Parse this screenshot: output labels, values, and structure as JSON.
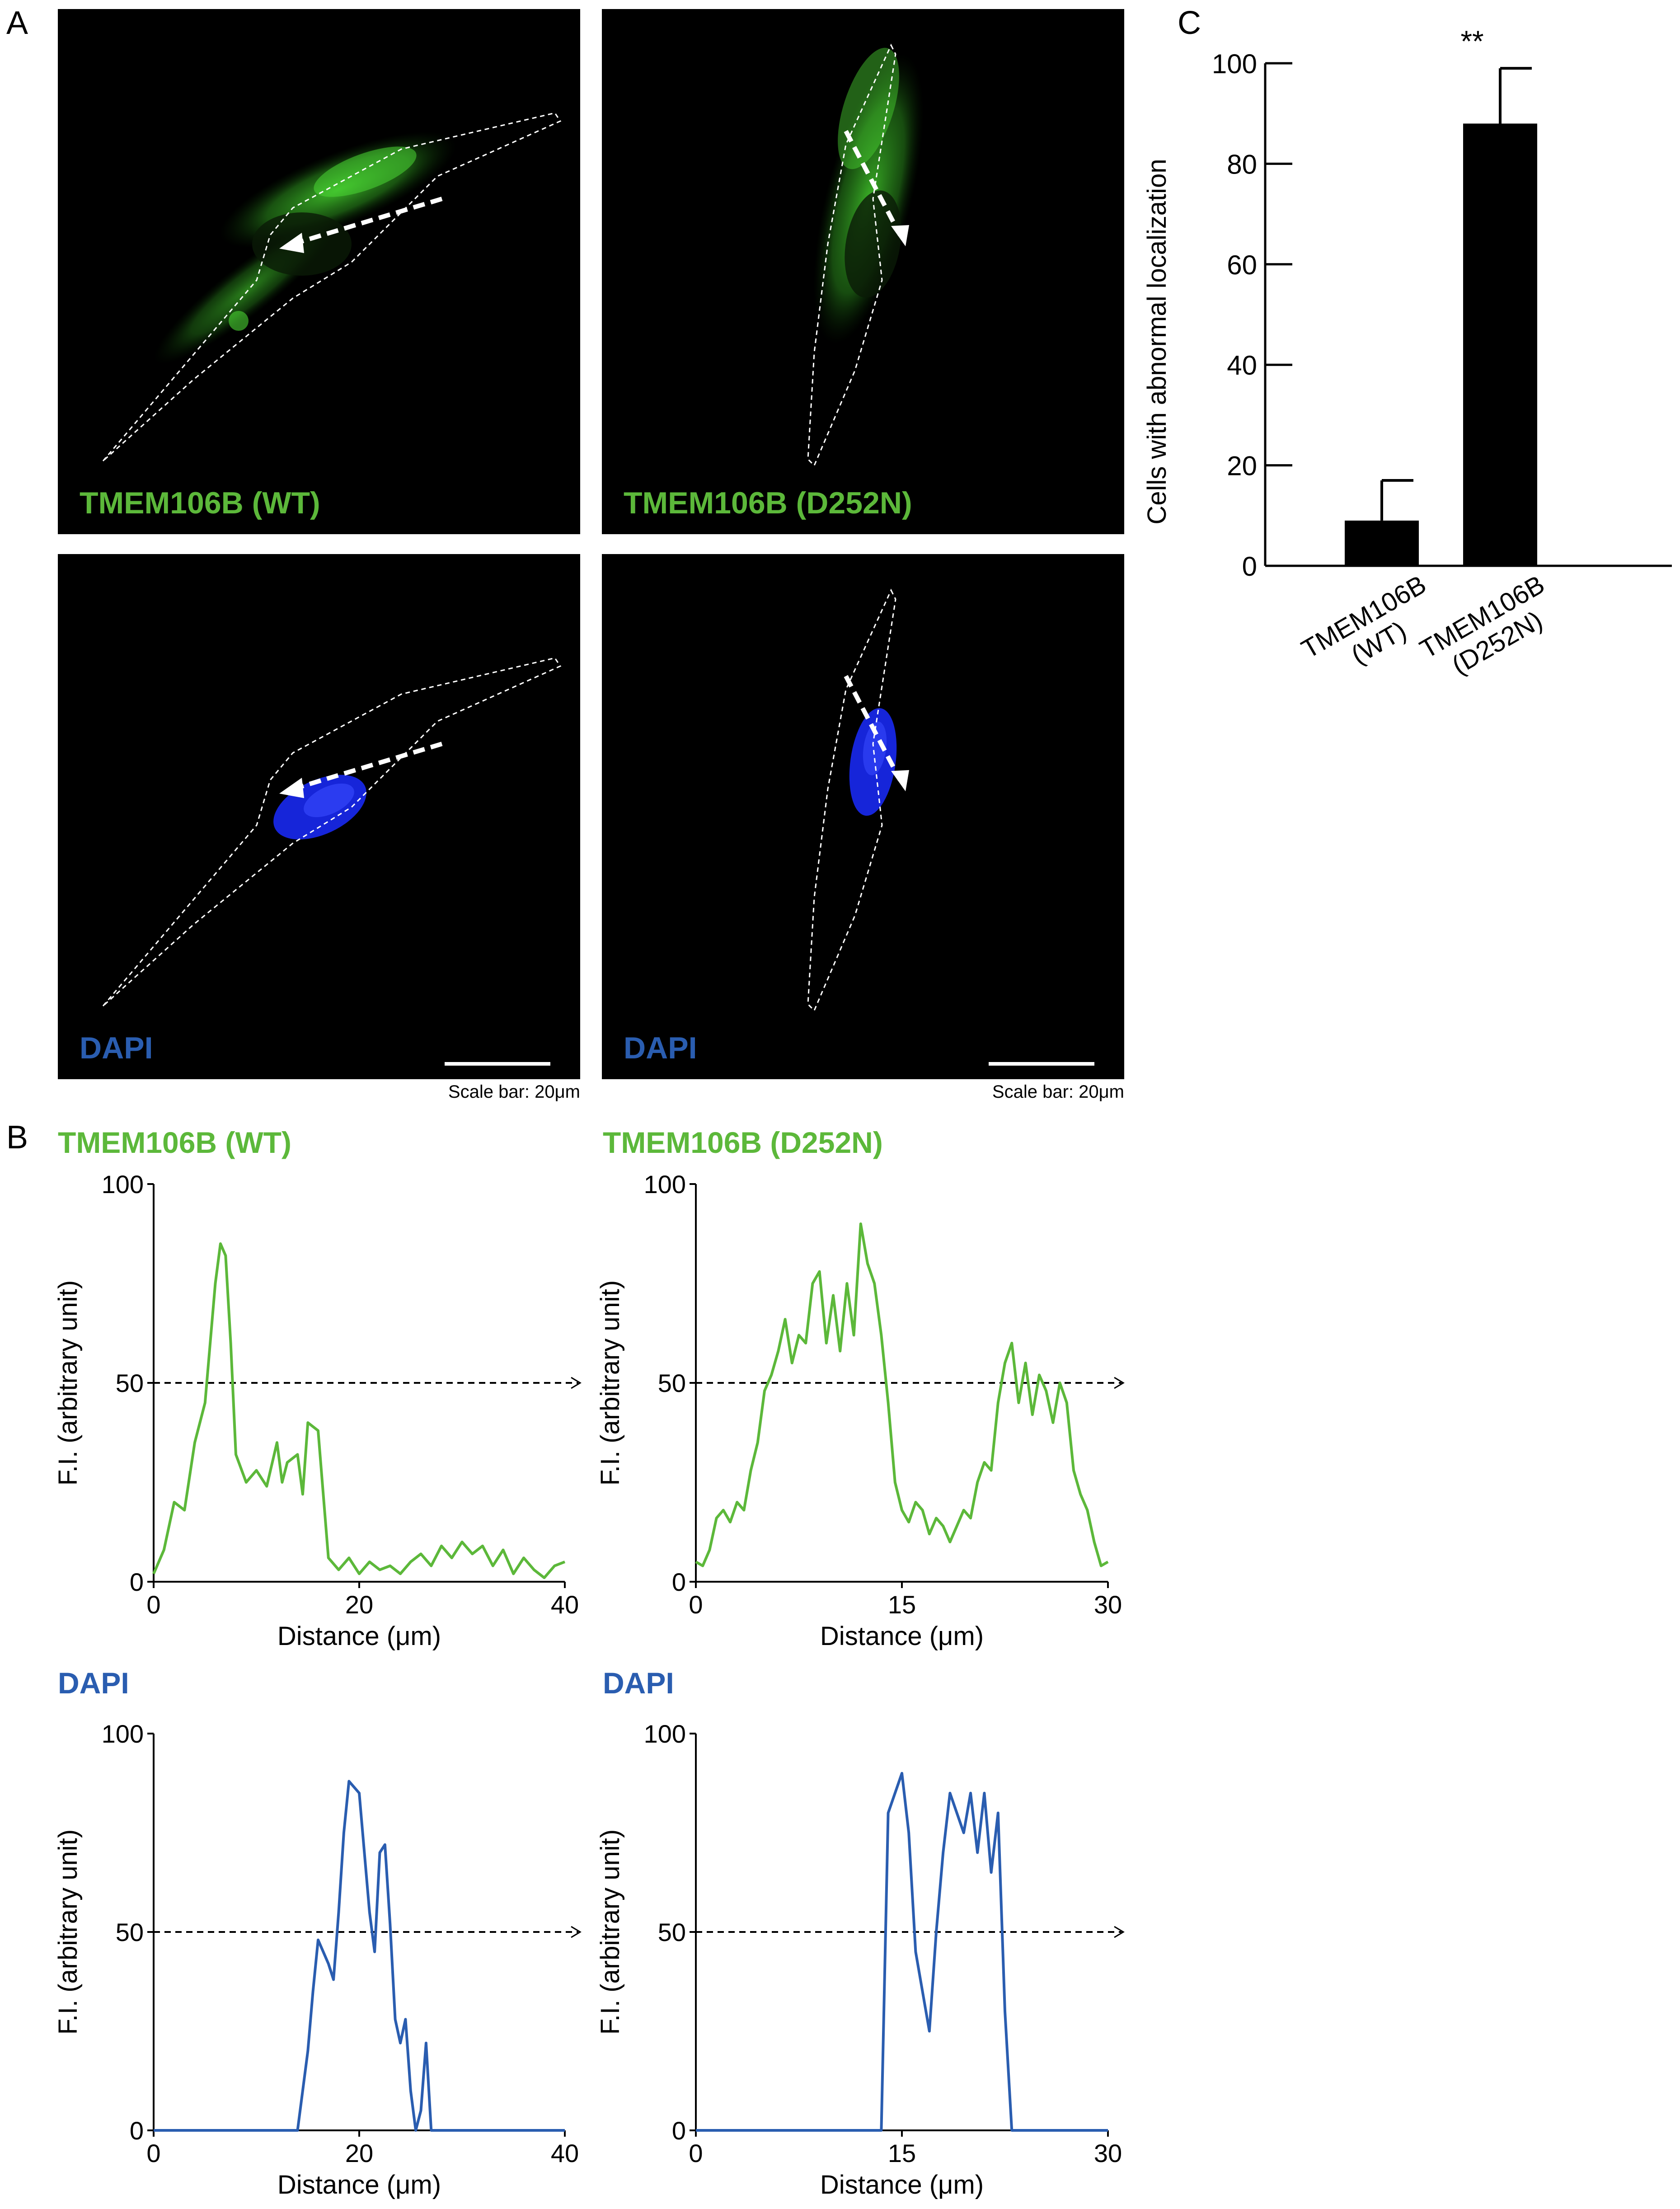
{
  "panel_labels": {
    "a": "A",
    "b": "B",
    "c": "C"
  },
  "colors": {
    "green": "#5cb83a",
    "blue": "#2a5db0",
    "gfp": "#3fbf2a",
    "dapi_signal": "#1a2cff"
  },
  "panel_a": {
    "images": [
      {
        "label": "TMEM106B (WT)",
        "channel": "green"
      },
      {
        "label": "TMEM106B (D252N)",
        "channel": "green"
      },
      {
        "label": "DAPI",
        "channel": "blue",
        "scale_bar": true
      },
      {
        "label": "DAPI",
        "channel": "blue",
        "scale_bar": true
      }
    ],
    "scale_caption": "Scale bar: 20μm"
  },
  "panel_b": {
    "titles": [
      "TMEM106B (WT)",
      "TMEM106B (D252N)",
      "DAPI",
      "DAPI"
    ],
    "xlabel": "Distance (μm)",
    "ylabel": "F.I. (arbitrary unit)"
  },
  "chart_data": [
    {
      "type": "line",
      "title": "TMEM106B (WT)",
      "xlabel": "Distance (μm)",
      "ylabel": "F.I. (arbitrary unit)",
      "xlim": [
        0,
        40
      ],
      "ylim": [
        0,
        100
      ],
      "xticks": [
        0,
        20,
        40
      ],
      "yticks": [
        0,
        50,
        100
      ],
      "reference_line": 50,
      "series": [
        {
          "color": "#5cb83a",
          "x": [
            0,
            1,
            2,
            3,
            4,
            5,
            6,
            6.5,
            7,
            7.5,
            8,
            9,
            10,
            11,
            12,
            12.5,
            13,
            14,
            14.5,
            15,
            16,
            17,
            18,
            19,
            20,
            21,
            22,
            23,
            24,
            25,
            26,
            27,
            28,
            29,
            30,
            31,
            32,
            33,
            34,
            35,
            36,
            37,
            38,
            39,
            40
          ],
          "y": [
            2,
            8,
            20,
            18,
            35,
            45,
            75,
            85,
            82,
            60,
            32,
            25,
            28,
            24,
            35,
            25,
            30,
            32,
            22,
            40,
            38,
            6,
            3,
            6,
            2,
            5,
            3,
            4,
            2,
            5,
            7,
            4,
            9,
            6,
            10,
            7,
            9,
            4,
            8,
            2,
            6,
            3,
            1,
            4,
            5
          ]
        }
      ]
    },
    {
      "type": "line",
      "title": "TMEM106B (D252N)",
      "xlabel": "Distance (μm)",
      "ylabel": "F.I. (arbitrary unit)",
      "xlim": [
        0,
        30
      ],
      "ylim": [
        0,
        100
      ],
      "xticks": [
        0,
        15,
        30
      ],
      "yticks": [
        0,
        50,
        100
      ],
      "reference_line": 50,
      "series": [
        {
          "color": "#5cb83a",
          "x": [
            0,
            0.5,
            1,
            1.5,
            2,
            2.5,
            3,
            3.5,
            4,
            4.5,
            5,
            5.5,
            6,
            6.5,
            7,
            7.5,
            8,
            8.5,
            9,
            9.5,
            10,
            10.5,
            11,
            11.5,
            12,
            12.5,
            13,
            13.5,
            14,
            14.5,
            15,
            15.5,
            16,
            16.5,
            17,
            17.5,
            18,
            18.5,
            19,
            19.5,
            20,
            20.5,
            21,
            21.5,
            22,
            22.5,
            23,
            23.5,
            24,
            24.5,
            25,
            25.5,
            26,
            26.5,
            27,
            27.5,
            28,
            28.5,
            29,
            29.5,
            30
          ],
          "y": [
            5,
            4,
            8,
            16,
            18,
            15,
            20,
            18,
            28,
            35,
            48,
            52,
            58,
            66,
            55,
            62,
            60,
            75,
            78,
            60,
            72,
            58,
            75,
            62,
            90,
            80,
            75,
            62,
            45,
            25,
            18,
            15,
            20,
            18,
            12,
            16,
            14,
            10,
            14,
            18,
            16,
            25,
            30,
            28,
            45,
            55,
            60,
            45,
            55,
            42,
            52,
            48,
            40,
            50,
            45,
            28,
            22,
            18,
            10,
            4,
            5
          ]
        }
      ]
    },
    {
      "type": "line",
      "title": "DAPI",
      "xlabel": "Distance (μm)",
      "ylabel": "F.I. (arbitrary unit)",
      "xlim": [
        0,
        40
      ],
      "ylim": [
        0,
        100
      ],
      "xticks": [
        0,
        20,
        40
      ],
      "yticks": [
        0,
        50,
        100
      ],
      "reference_line": 50,
      "series": [
        {
          "color": "#2a5db0",
          "x": [
            0,
            14,
            15,
            15.5,
            16,
            17,
            17.5,
            18,
            18.5,
            19,
            20,
            21,
            21.5,
            22,
            22.5,
            23,
            23.5,
            24,
            24.5,
            25,
            25.5,
            26,
            26.5,
            27,
            40
          ],
          "y": [
            0,
            0,
            20,
            35,
            48,
            42,
            38,
            55,
            75,
            88,
            85,
            55,
            45,
            70,
            72,
            52,
            28,
            22,
            28,
            10,
            0,
            5,
            22,
            0,
            0
          ]
        }
      ]
    },
    {
      "type": "line",
      "title": "DAPI",
      "xlabel": "Distance (μm)",
      "ylabel": "F.I. (arbitrary unit)",
      "xlim": [
        0,
        30
      ],
      "ylim": [
        0,
        100
      ],
      "xticks": [
        0,
        15,
        30
      ],
      "yticks": [
        0,
        50,
        100
      ],
      "reference_line": 50,
      "series": [
        {
          "color": "#2a5db0",
          "x": [
            0,
            13.5,
            14,
            14.5,
            15,
            15.5,
            16,
            16.5,
            17,
            17.5,
            18,
            18.5,
            19,
            19.5,
            20,
            20.5,
            21,
            21.5,
            22,
            22.5,
            23,
            30
          ],
          "y": [
            0,
            0,
            80,
            85,
            90,
            75,
            45,
            35,
            25,
            50,
            70,
            85,
            80,
            75,
            85,
            70,
            85,
            65,
            80,
            30,
            0,
            0
          ]
        }
      ]
    },
    {
      "type": "bar",
      "ylabel": "Cells with abnormal localization",
      "categories": [
        "TMEM106B (WT)",
        "TMEM106B (D252N)"
      ],
      "category_lines": [
        [
          "TMEM106B",
          "(WT)"
        ],
        [
          "TMEM106B",
          "(D252N)"
        ]
      ],
      "values": [
        9,
        88
      ],
      "errors": [
        8,
        11
      ],
      "ylim": [
        0,
        100
      ],
      "yticks": [
        0,
        20,
        40,
        60,
        80,
        100
      ],
      "significance": "**"
    }
  ]
}
